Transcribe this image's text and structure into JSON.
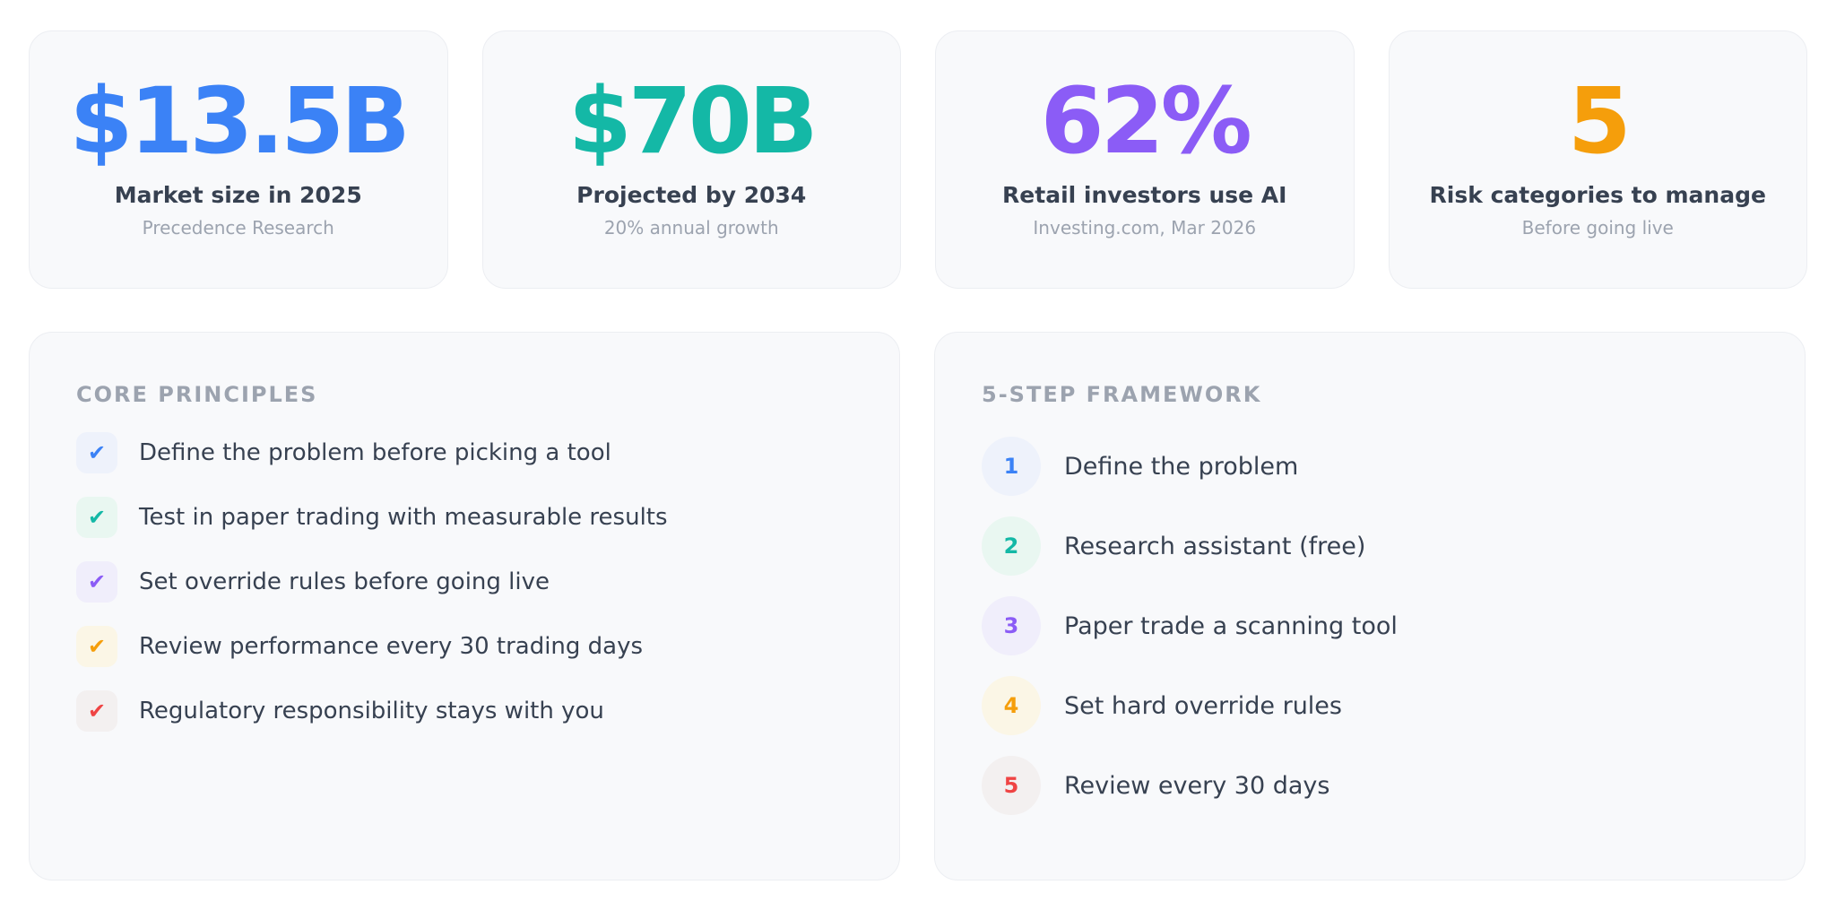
{
  "stats": [
    {
      "value": "$13.5B",
      "label": "Market size in 2025",
      "source": "Precedence Research",
      "color": "#3b82f6"
    },
    {
      "value": "$70B",
      "label": "Projected by 2034",
      "source": "20% annual growth",
      "color": "#14b8a6"
    },
    {
      "value": "62%",
      "label": "Retail investors use AI",
      "source": "Investing.com, Mar 2026",
      "color": "#8b5cf6"
    },
    {
      "value": "5",
      "label": "Risk categories to manage",
      "source": "Before going live",
      "color": "#f59e0b"
    }
  ],
  "principles": {
    "heading": "CORE PRINCIPLES",
    "icon": "checkmark-icon",
    "glyph": "✔",
    "items": [
      {
        "text": "Define the problem before picking a tool",
        "color": "#3b82f6",
        "bg": "#eef2fb"
      },
      {
        "text": "Test in paper trading with measurable results",
        "color": "#14b8a6",
        "bg": "#e9f7f1"
      },
      {
        "text": "Set override rules before going live",
        "color": "#8b5cf6",
        "bg": "#f0eefb"
      },
      {
        "text": "Review performance every 30 trading days",
        "color": "#f59e0b",
        "bg": "#fbf6e6"
      },
      {
        "text": "Regulatory responsibility stays with you",
        "color": "#ef4444",
        "bg": "#f3f0f0"
      }
    ]
  },
  "framework": {
    "heading": "5-STEP FRAMEWORK",
    "steps": [
      {
        "number": "1",
        "text": "Define the problem",
        "color": "#3b82f6",
        "bg": "#eef2fb"
      },
      {
        "number": "2",
        "text": "Research assistant (free)",
        "color": "#14b8a6",
        "bg": "#e9f7f1"
      },
      {
        "number": "3",
        "text": "Paper trade a scanning tool",
        "color": "#8b5cf6",
        "bg": "#f0eefb"
      },
      {
        "number": "4",
        "text": "Set hard override rules",
        "color": "#f59e0b",
        "bg": "#fbf6e6"
      },
      {
        "number": "5",
        "text": "Review every 30 days",
        "color": "#ef4444",
        "bg": "#f3f0f0"
      }
    ]
  }
}
